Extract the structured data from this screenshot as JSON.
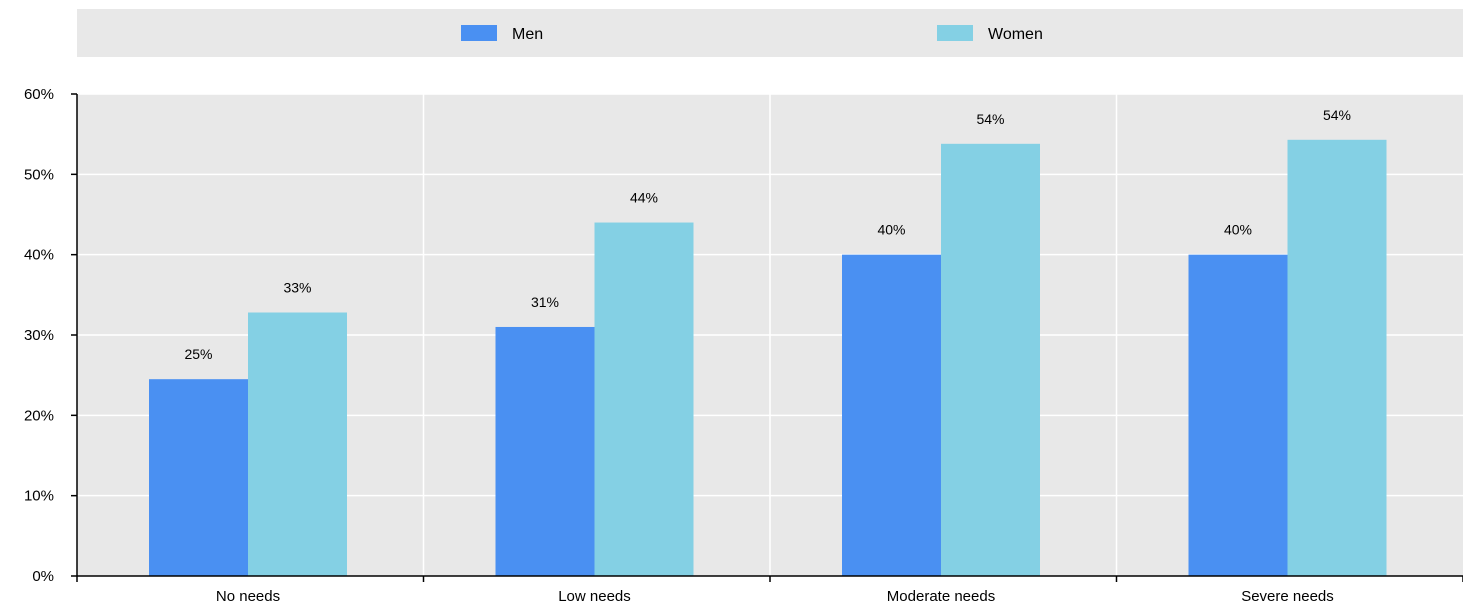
{
  "chart_data": {
    "type": "bar",
    "categories": [
      "No needs",
      "Low needs",
      "Moderate needs",
      "Severe needs"
    ],
    "series": [
      {
        "name": "Men",
        "values": [
          24.5,
          31,
          40,
          40
        ],
        "labels": [
          "25%",
          "31%",
          "40%",
          "40%"
        ]
      },
      {
        "name": "Women",
        "values": [
          32.8,
          44,
          53.8,
          54.3
        ],
        "labels": [
          "33%",
          "44%",
          "54%",
          "54%"
        ]
      }
    ],
    "ylim": [
      0,
      60
    ],
    "yticks": [
      0,
      10,
      20,
      30,
      40,
      50,
      60
    ],
    "ytick_labels": [
      "0%",
      "10%",
      "20%",
      "30%",
      "40%",
      "50%",
      "60%"
    ],
    "grid": true,
    "legend_position": "top",
    "colors": {
      "men": "#4a90f2",
      "women": "#84d0e4",
      "plot_background": "#e8e8e8",
      "legend_background": "#e8e8e8",
      "gridline": "#ffffff"
    }
  }
}
